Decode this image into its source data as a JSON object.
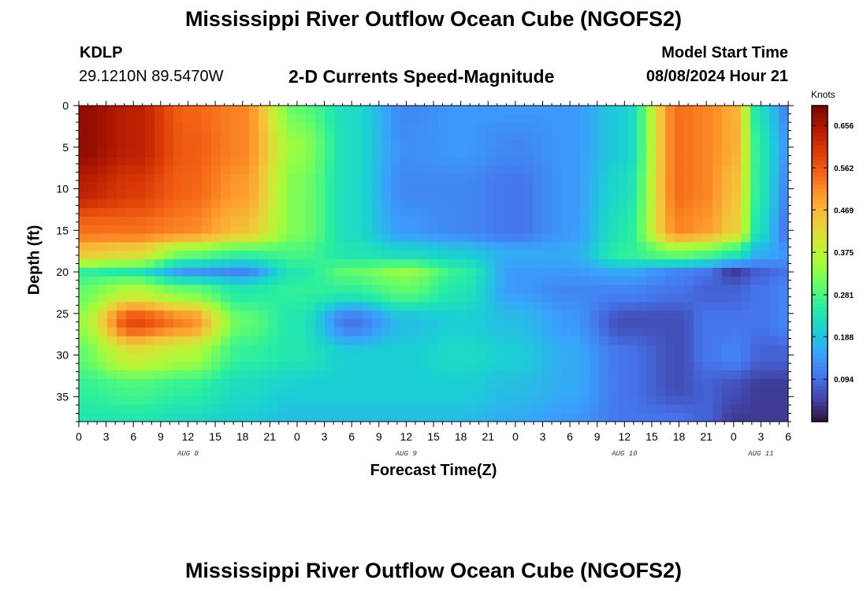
{
  "header": {
    "title": "Mississippi River Outflow Ocean Cube (NGOFS2)",
    "station_id": "KDLP",
    "coordinates": "29.1210N  89.5470W",
    "subtitle": "2-D Currents Speed-Magnitude",
    "model_start_label": "Model Start Time",
    "model_start_value": "08/08/2024 Hour 21"
  },
  "footer": {
    "title": "Mississippi River Outflow Ocean Cube (NGOFS2)"
  },
  "colors": {
    "colormap": [
      "#30123b",
      "#4145ab",
      "#4675ed",
      "#39a2fc",
      "#1bcfd4",
      "#24eca6",
      "#61fc6c",
      "#a4fc3b",
      "#d1e834",
      "#f3c63a",
      "#fe9b2d",
      "#f36315",
      "#d93806",
      "#b11901",
      "#7a0402"
    ]
  },
  "chart_data": {
    "type": "heatmap",
    "title": "2-D Currents Speed-Magnitude",
    "xlabel": "Forecast Time(Z)",
    "ylabel": "Depth (ft)",
    "colorbar_label": "Knots",
    "x_unit": "hours from Aug 8 00Z",
    "x_range": [
      0,
      78
    ],
    "x_tick_values": [
      0,
      3,
      6,
      9,
      12,
      15,
      18,
      21,
      24,
      27,
      30,
      33,
      36,
      39,
      42,
      45,
      48,
      51,
      54,
      57,
      60,
      63,
      66,
      69,
      72,
      75,
      78
    ],
    "x_tick_labels": [
      "0",
      "3",
      "6",
      "9",
      "12",
      "15",
      "18",
      "21",
      "0",
      "3",
      "6",
      "9",
      "12",
      "15",
      "18",
      "21",
      "0",
      "3",
      "6",
      "9",
      "12",
      "15",
      "18",
      "21",
      "0",
      "3",
      "6"
    ],
    "date_labels": [
      {
        "text": "AUG 8",
        "x": 12
      },
      {
        "text": "AUG 9",
        "x": 36
      },
      {
        "text": "AUG 10",
        "x": 60
      },
      {
        "text": "AUG 11",
        "x": 75
      }
    ],
    "y_range": [
      0,
      38
    ],
    "y_inverted": true,
    "y_ticks": [
      0,
      5,
      10,
      15,
      20,
      25,
      30,
      35
    ],
    "value_range": [
      0.0,
      0.7
    ],
    "colorbar_ticks": [
      "0.656",
      "0.562",
      "0.469",
      "0.375",
      "0.281",
      "0.188",
      "0.094"
    ],
    "colorbar_tick_values": [
      0.656,
      0.562,
      0.469,
      0.375,
      0.281,
      0.188,
      0.094
    ],
    "x_grid": [
      0,
      6,
      12,
      18,
      24,
      30,
      36,
      42,
      48,
      54,
      60,
      66,
      69,
      72,
      75,
      78
    ],
    "y_grid": [
      0,
      5,
      10,
      15,
      18,
      20,
      22,
      26,
      30,
      34,
      38
    ],
    "values": [
      [
        0.68,
        0.64,
        0.55,
        0.52,
        0.3,
        0.22,
        0.12,
        0.14,
        0.14,
        0.14,
        0.2,
        0.54,
        0.52,
        0.48,
        0.22,
        0.12
      ],
      [
        0.68,
        0.64,
        0.56,
        0.52,
        0.34,
        0.22,
        0.13,
        0.14,
        0.12,
        0.14,
        0.2,
        0.54,
        0.52,
        0.48,
        0.24,
        0.14
      ],
      [
        0.64,
        0.6,
        0.55,
        0.5,
        0.32,
        0.22,
        0.12,
        0.12,
        0.1,
        0.14,
        0.22,
        0.54,
        0.52,
        0.46,
        0.24,
        0.12
      ],
      [
        0.54,
        0.54,
        0.52,
        0.46,
        0.32,
        0.22,
        0.14,
        0.12,
        0.1,
        0.14,
        0.24,
        0.52,
        0.5,
        0.44,
        0.22,
        0.1
      ],
      [
        0.44,
        0.42,
        0.3,
        0.26,
        0.28,
        0.24,
        0.22,
        0.2,
        0.16,
        0.16,
        0.26,
        0.3,
        0.28,
        0.24,
        0.16,
        0.14
      ],
      [
        0.26,
        0.24,
        0.14,
        0.12,
        0.24,
        0.3,
        0.34,
        0.26,
        0.14,
        0.14,
        0.16,
        0.12,
        0.1,
        0.04,
        0.08,
        0.1
      ],
      [
        0.3,
        0.36,
        0.3,
        0.24,
        0.26,
        0.26,
        0.3,
        0.24,
        0.14,
        0.12,
        0.12,
        0.1,
        0.08,
        0.08,
        0.1,
        0.12
      ],
      [
        0.34,
        0.58,
        0.52,
        0.3,
        0.24,
        0.1,
        0.18,
        0.2,
        0.18,
        0.14,
        0.06,
        0.06,
        0.1,
        0.1,
        0.1,
        0.12
      ],
      [
        0.3,
        0.4,
        0.36,
        0.26,
        0.24,
        0.2,
        0.2,
        0.22,
        0.2,
        0.16,
        0.1,
        0.06,
        0.1,
        0.12,
        0.08,
        0.08
      ],
      [
        0.26,
        0.28,
        0.26,
        0.22,
        0.2,
        0.2,
        0.2,
        0.2,
        0.18,
        0.16,
        0.1,
        0.06,
        0.08,
        0.06,
        0.04,
        0.04
      ],
      [
        0.24,
        0.24,
        0.22,
        0.2,
        0.18,
        0.18,
        0.18,
        0.18,
        0.16,
        0.14,
        0.1,
        0.1,
        0.08,
        0.04,
        0.04,
        0.04
      ]
    ]
  }
}
